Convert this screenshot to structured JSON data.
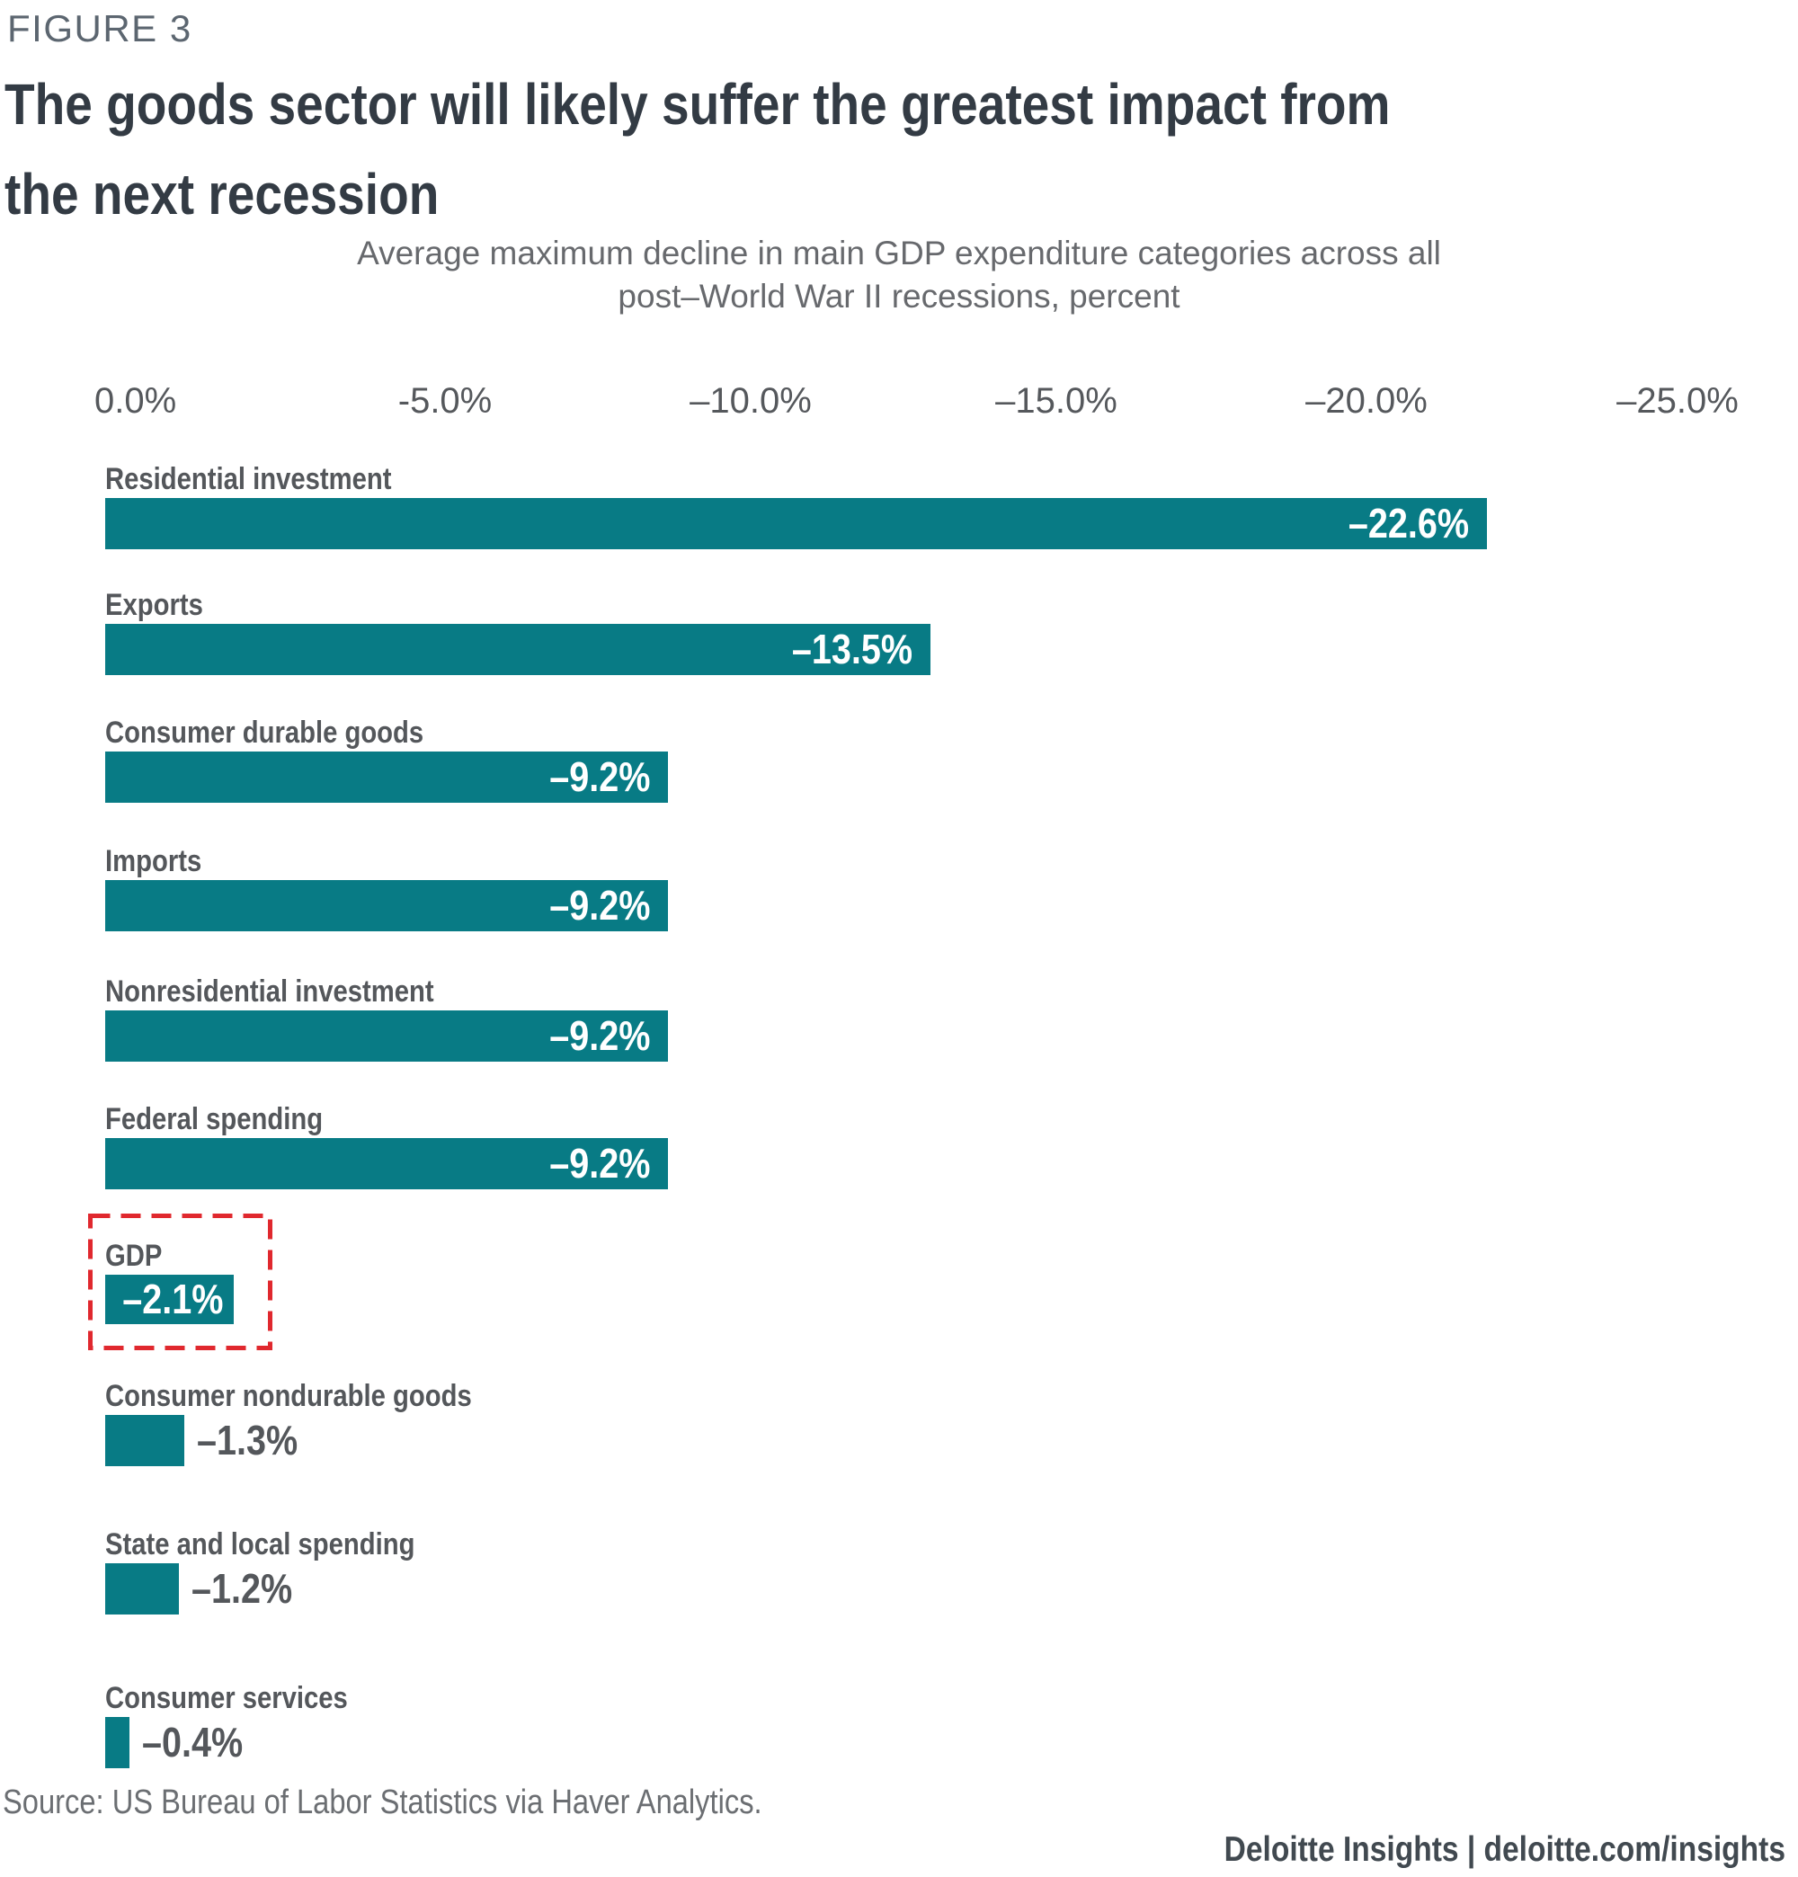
{
  "figure_label": "FIGURE 3",
  "title_line1": "The goods sector will likely suffer the greatest impact from",
  "title_line2": "the next recession",
  "subtitle_line1": "Average maximum decline in main GDP expenditure categories across all",
  "subtitle_line2": "post–World War II recessions, percent",
  "axis": {
    "ticks": [
      "0.0%",
      "-5.0%",
      "–10.0%",
      "–15.0%",
      "–20.0%",
      "–25.0%"
    ]
  },
  "source": "Source: US Bureau of Labor Statistics via Haver Analytics.",
  "footer": "Deloitte Insights | deloitte.com/insights",
  "colors": {
    "bar": "#087b85",
    "highlight_box": "#e0282e",
    "title": "#333b44",
    "label_gray": "#54575b"
  },
  "chart_data": {
    "type": "bar",
    "orientation": "horizontal",
    "title": "The goods sector will likely suffer the greatest impact from the next recession",
    "subtitle": "Average maximum decline in main GDP expenditure categories across all post–World War II recessions, percent",
    "unit": "percent",
    "xlim": [
      0,
      -25
    ],
    "axis_tick_values": [
      0,
      -5,
      -10,
      -15,
      -20,
      -25
    ],
    "grid": false,
    "legend": false,
    "highlighted_category": "GDP",
    "rows": [
      {
        "label": "Residential investment",
        "value": -22.6,
        "value_label": "–22.6%"
      },
      {
        "label": "Exports",
        "value": -13.5,
        "value_label": "–13.5%"
      },
      {
        "label": "Consumer durable goods",
        "value": -9.2,
        "value_label": "–9.2%"
      },
      {
        "label": "Imports",
        "value": -9.2,
        "value_label": "–9.2%"
      },
      {
        "label": "Nonresidential investment",
        "value": -9.2,
        "value_label": "–9.2%"
      },
      {
        "label": "Federal spending",
        "value": -9.2,
        "value_label": "–9.2%"
      },
      {
        "label": "GDP",
        "value": -2.1,
        "value_label": "–2.1%"
      },
      {
        "label": "Consumer nondurable goods",
        "value": -1.3,
        "value_label": "–1.3%"
      },
      {
        "label": "State and local spending",
        "value": -1.2,
        "value_label": "–1.2%"
      },
      {
        "label": "Consumer services",
        "value": -0.4,
        "value_label": "–0.4%"
      }
    ]
  }
}
